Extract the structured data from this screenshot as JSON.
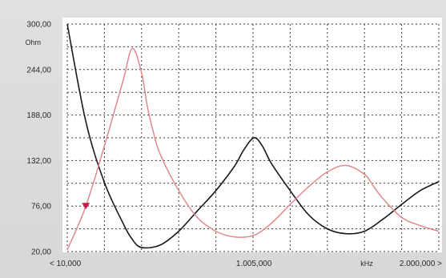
{
  "chart_data": {
    "type": "line",
    "ylabel": "Ohm",
    "xlabel": "kHz",
    "ylim": [
      20,
      300
    ],
    "xlim": [
      10,
      2000000
    ],
    "grid": true,
    "y_ticks": [
      "300,00",
      "244,00",
      "188,00",
      "132,00",
      "76,00",
      "20,00"
    ],
    "y_tick_values": [
      300,
      244,
      188,
      132,
      76,
      20
    ],
    "x_tick_labels": [
      "< 10,000",
      "1.005,000",
      "2.000,000 >"
    ],
    "x_tick_values": [
      10,
      1005000,
      2000000
    ],
    "series": [
      {
        "color": "#1a1a1a",
        "x": [
          10,
          100000,
          200000,
          300000,
          350000,
          400000,
          500000,
          600000,
          700000,
          800000,
          900000,
          950000,
          1005000,
          1050000,
          1100000,
          1200000,
          1300000,
          1400000,
          1500000,
          1600000,
          1700000,
          1800000,
          1900000,
          2000000
        ],
        "y": [
          300,
          180,
          105,
          55,
          35,
          25,
          28,
          45,
          70,
          95,
          125,
          145,
          160,
          150,
          128,
          95,
          65,
          48,
          42,
          45,
          60,
          78,
          95,
          106
        ]
      },
      {
        "color": "#e08a8a",
        "x": [
          10,
          100000,
          200000,
          300000,
          350000,
          400000,
          430000,
          460000,
          500000,
          600000,
          700000,
          800000,
          900000,
          1005000,
          1100000,
          1200000,
          1300000,
          1400000,
          1500000,
          1600000,
          1650000,
          1700000,
          1800000,
          1900000,
          2000000
        ],
        "y": [
          22,
          76,
          150,
          230,
          270,
          240,
          200,
          170,
          140,
          95,
          62,
          45,
          38,
          40,
          55,
          78,
          100,
          118,
          126,
          115,
          100,
          85,
          62,
          52,
          45
        ]
      }
    ],
    "marker": {
      "x": 100000,
      "y": 76,
      "color": "#c0204a"
    }
  }
}
